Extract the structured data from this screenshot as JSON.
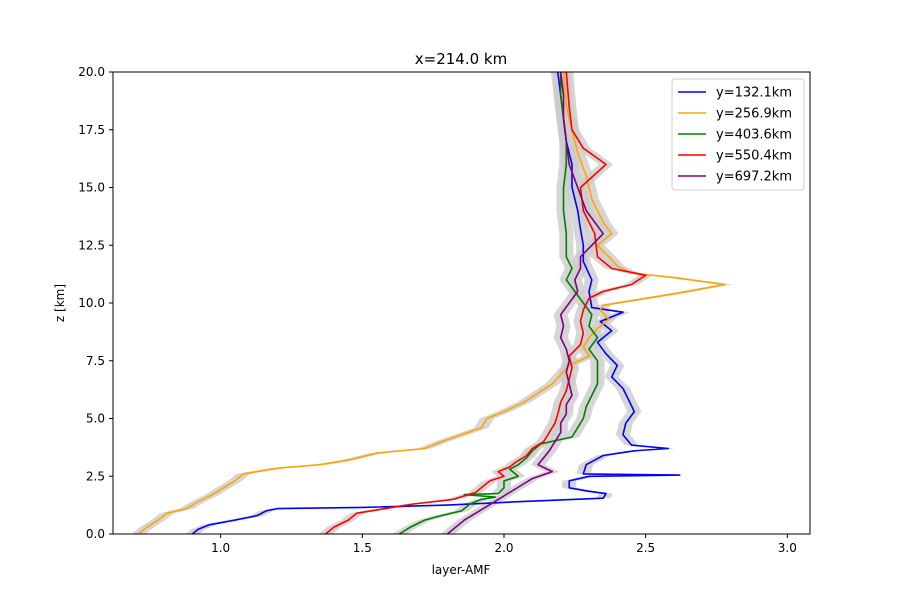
{
  "chart_data": {
    "type": "line",
    "title": "x=214.0 km",
    "xlabel": "layer-AMF",
    "ylabel": "z [km]",
    "xlim": [
      0.62,
      3.08
    ],
    "ylim": [
      0,
      20
    ],
    "xticks": [
      1.0,
      1.5,
      2.0,
      2.5,
      3.0
    ],
    "xtick_labels": [
      "1.0",
      "1.5",
      "2.0",
      "2.5",
      "3.0"
    ],
    "yticks": [
      0,
      2.5,
      5,
      7.5,
      10,
      12.5,
      15,
      17.5,
      20
    ],
    "ytick_labels": [
      "0.0",
      "2.5",
      "5.0",
      "7.5",
      "10.0",
      "12.5",
      "15.0",
      "17.5",
      "20.0"
    ],
    "grid": false,
    "legend_position": "top-right",
    "uncertainty_color": "#cccccc",
    "series": [
      {
        "name": "y=132.1km",
        "color": "#0000ff",
        "points": [
          [
            0.9,
            0
          ],
          [
            0.92,
            0.2
          ],
          [
            0.96,
            0.4
          ],
          [
            1.05,
            0.6
          ],
          [
            1.13,
            0.8
          ],
          [
            1.16,
            1.0
          ],
          [
            1.2,
            1.1
          ],
          [
            1.5,
            1.15
          ],
          [
            1.8,
            1.25
          ],
          [
            2.05,
            1.4
          ],
          [
            2.35,
            1.55
          ],
          [
            2.36,
            1.75
          ],
          [
            2.3,
            1.85
          ],
          [
            2.23,
            2.0
          ],
          [
            2.23,
            2.3
          ],
          [
            2.3,
            2.5
          ],
          [
            2.62,
            2.55
          ],
          [
            2.28,
            2.6
          ],
          [
            2.29,
            3.0
          ],
          [
            2.35,
            3.4
          ],
          [
            2.46,
            3.6
          ],
          [
            2.58,
            3.7
          ],
          [
            2.45,
            3.85
          ],
          [
            2.42,
            4.3
          ],
          [
            2.43,
            4.8
          ],
          [
            2.46,
            5.3
          ],
          [
            2.44,
            5.8
          ],
          [
            2.42,
            6.3
          ],
          [
            2.38,
            6.8
          ],
          [
            2.4,
            7.3
          ],
          [
            2.36,
            7.8
          ],
          [
            2.33,
            8.3
          ],
          [
            2.38,
            8.8
          ],
          [
            2.34,
            9.2
          ],
          [
            2.42,
            9.6
          ],
          [
            2.31,
            9.8
          ],
          [
            2.3,
            10.5
          ],
          [
            2.31,
            11.0
          ],
          [
            2.28,
            11.8
          ],
          [
            2.28,
            12.5
          ],
          [
            2.27,
            13.2
          ],
          [
            2.26,
            14.0
          ],
          [
            2.24,
            15.0
          ],
          [
            2.24,
            16.0
          ],
          [
            2.22,
            17.0
          ],
          [
            2.21,
            18.0
          ],
          [
            2.2,
            19.0
          ],
          [
            2.19,
            20.0
          ]
        ]
      },
      {
        "name": "y=256.9km",
        "color": "#ffa500",
        "points": [
          [
            0.71,
            0
          ],
          [
            0.74,
            0.3
          ],
          [
            0.78,
            0.6
          ],
          [
            0.81,
            0.9
          ],
          [
            0.88,
            1.1
          ],
          [
            0.92,
            1.4
          ],
          [
            0.97,
            1.7
          ],
          [
            1.01,
            2.0
          ],
          [
            1.05,
            2.3
          ],
          [
            1.08,
            2.6
          ],
          [
            1.2,
            2.85
          ],
          [
            1.35,
            3.0
          ],
          [
            1.45,
            3.2
          ],
          [
            1.55,
            3.5
          ],
          [
            1.72,
            3.7
          ],
          [
            1.78,
            4.0
          ],
          [
            1.85,
            4.3
          ],
          [
            1.92,
            4.6
          ],
          [
            1.94,
            5.0
          ],
          [
            2.0,
            5.3
          ],
          [
            2.07,
            5.7
          ],
          [
            2.12,
            6.1
          ],
          [
            2.17,
            6.5
          ],
          [
            2.2,
            6.9
          ],
          [
            2.23,
            7.3
          ],
          [
            2.3,
            7.7
          ],
          [
            2.28,
            8.1
          ],
          [
            2.3,
            8.5
          ],
          [
            2.33,
            8.9
          ],
          [
            2.37,
            9.3
          ],
          [
            2.34,
            9.7
          ],
          [
            2.35,
            9.9
          ],
          [
            2.5,
            10.2
          ],
          [
            2.65,
            10.5
          ],
          [
            2.78,
            10.8
          ],
          [
            2.6,
            11.1
          ],
          [
            2.45,
            11.3
          ],
          [
            2.4,
            11.6
          ],
          [
            2.37,
            12.0
          ],
          [
            2.33,
            12.5
          ],
          [
            2.38,
            13.0
          ],
          [
            2.35,
            13.5
          ],
          [
            2.33,
            14.0
          ],
          [
            2.31,
            14.5
          ],
          [
            2.29,
            15.5
          ],
          [
            2.26,
            16.5
          ],
          [
            2.24,
            17.5
          ],
          [
            2.22,
            18.5
          ],
          [
            2.21,
            20.0
          ]
        ]
      },
      {
        "name": "y=403.6km",
        "color": "#008000",
        "points": [
          [
            1.63,
            0
          ],
          [
            1.67,
            0.3
          ],
          [
            1.72,
            0.6
          ],
          [
            1.78,
            0.8
          ],
          [
            1.85,
            1.0
          ],
          [
            1.88,
            1.3
          ],
          [
            1.92,
            1.5
          ],
          [
            1.97,
            1.6
          ],
          [
            1.86,
            1.7
          ],
          [
            1.98,
            1.75
          ],
          [
            2.0,
            2.0
          ],
          [
            2.0,
            2.3
          ],
          [
            2.05,
            2.5
          ],
          [
            2.02,
            2.8
          ],
          [
            2.05,
            3.0
          ],
          [
            2.08,
            3.3
          ],
          [
            2.1,
            3.6
          ],
          [
            2.13,
            3.9
          ],
          [
            2.24,
            4.2
          ],
          [
            2.26,
            4.6
          ],
          [
            2.28,
            5.0
          ],
          [
            2.29,
            5.5
          ],
          [
            2.31,
            6.0
          ],
          [
            2.33,
            6.5
          ],
          [
            2.33,
            7.0
          ],
          [
            2.33,
            7.5
          ],
          [
            2.3,
            8.0
          ],
          [
            2.33,
            8.5
          ],
          [
            2.3,
            9.0
          ],
          [
            2.31,
            9.5
          ],
          [
            2.28,
            10.0
          ],
          [
            2.25,
            10.5
          ],
          [
            2.22,
            11.0
          ],
          [
            2.24,
            11.5
          ],
          [
            2.22,
            12.0
          ],
          [
            2.22,
            13.0
          ],
          [
            2.21,
            14.0
          ],
          [
            2.21,
            15.0
          ],
          [
            2.22,
            16.0
          ],
          [
            2.22,
            17.0
          ],
          [
            2.21,
            18.0
          ],
          [
            2.2,
            19.0
          ],
          [
            2.2,
            20.0
          ]
        ]
      },
      {
        "name": "y=550.4km",
        "color": "#ff0000",
        "points": [
          [
            1.37,
            0
          ],
          [
            1.4,
            0.3
          ],
          [
            1.45,
            0.6
          ],
          [
            1.48,
            0.9
          ],
          [
            1.58,
            1.1
          ],
          [
            1.68,
            1.3
          ],
          [
            1.82,
            1.5
          ],
          [
            1.9,
            1.8
          ],
          [
            1.92,
            2.0
          ],
          [
            1.95,
            2.3
          ],
          [
            2.0,
            2.5
          ],
          [
            1.98,
            2.7
          ],
          [
            2.02,
            2.9
          ],
          [
            2.04,
            3.1
          ],
          [
            2.08,
            3.4
          ],
          [
            2.1,
            3.7
          ],
          [
            2.14,
            4.0
          ],
          [
            2.16,
            4.4
          ],
          [
            2.18,
            4.8
          ],
          [
            2.19,
            5.2
          ],
          [
            2.2,
            5.7
          ],
          [
            2.22,
            6.2
          ],
          [
            2.23,
            6.7
          ],
          [
            2.24,
            7.2
          ],
          [
            2.23,
            7.7
          ],
          [
            2.27,
            8.2
          ],
          [
            2.28,
            8.7
          ],
          [
            2.27,
            9.2
          ],
          [
            2.28,
            9.7
          ],
          [
            2.3,
            10.2
          ],
          [
            2.35,
            10.5
          ],
          [
            2.45,
            10.8
          ],
          [
            2.5,
            11.2
          ],
          [
            2.38,
            11.5
          ],
          [
            2.33,
            12.0
          ],
          [
            2.32,
            13.0
          ],
          [
            2.28,
            14.0
          ],
          [
            2.27,
            15.0
          ],
          [
            2.36,
            16.0
          ],
          [
            2.28,
            16.7
          ],
          [
            2.24,
            17.5
          ],
          [
            2.23,
            18.5
          ],
          [
            2.22,
            20.0
          ]
        ]
      },
      {
        "name": "y=697.2km",
        "color": "#800080",
        "points": [
          [
            1.8,
            0
          ],
          [
            1.83,
            0.3
          ],
          [
            1.86,
            0.6
          ],
          [
            1.9,
            0.9
          ],
          [
            1.94,
            1.2
          ],
          [
            1.98,
            1.5
          ],
          [
            2.02,
            1.8
          ],
          [
            2.06,
            2.1
          ],
          [
            2.1,
            2.4
          ],
          [
            2.17,
            2.7
          ],
          [
            2.12,
            3.0
          ],
          [
            2.14,
            3.3
          ],
          [
            2.16,
            3.6
          ],
          [
            2.18,
            4.0
          ],
          [
            2.2,
            4.4
          ],
          [
            2.2,
            4.8
          ],
          [
            2.22,
            5.2
          ],
          [
            2.22,
            5.6
          ],
          [
            2.24,
            6.0
          ],
          [
            2.23,
            6.5
          ],
          [
            2.22,
            7.0
          ],
          [
            2.23,
            7.5
          ],
          [
            2.22,
            8.0
          ],
          [
            2.2,
            8.5
          ],
          [
            2.21,
            9.0
          ],
          [
            2.2,
            9.5
          ],
          [
            2.23,
            10.0
          ],
          [
            2.26,
            10.5
          ],
          [
            2.25,
            11.0
          ],
          [
            2.27,
            11.5
          ],
          [
            2.27,
            12.0
          ],
          [
            2.35,
            13.0
          ],
          [
            2.29,
            14.0
          ],
          [
            2.26,
            15.0
          ],
          [
            2.23,
            16.0
          ],
          [
            2.22,
            17.0
          ],
          [
            2.21,
            18.0
          ],
          [
            2.21,
            19.0
          ],
          [
            2.2,
            20.0
          ]
        ]
      }
    ]
  }
}
